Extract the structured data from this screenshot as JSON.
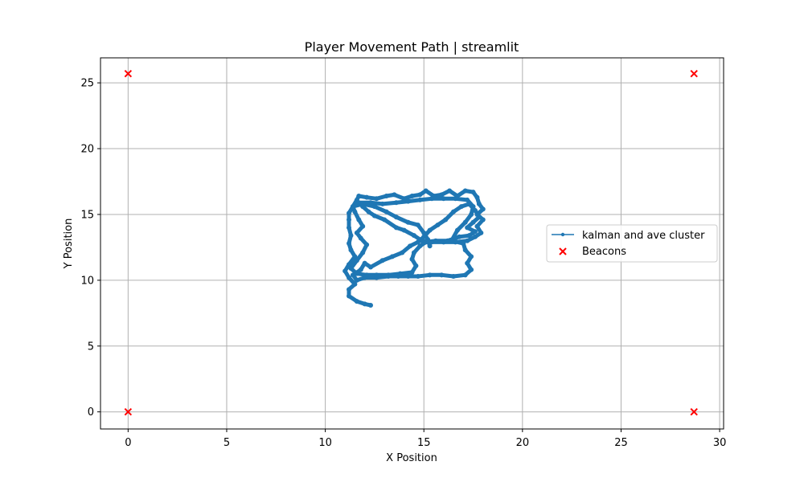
{
  "chart_data": {
    "type": "line",
    "title": "Player Movement Path | streamlit",
    "xlabel": "X Position",
    "ylabel": "Y Position",
    "xlim": [
      -1.4,
      30.2
    ],
    "ylim": [
      -1.3,
      26.9
    ],
    "xticks": [
      0,
      5,
      10,
      15,
      20,
      25,
      30
    ],
    "yticks": [
      0,
      5,
      10,
      15,
      20,
      25
    ],
    "grid": true,
    "legend": "center-right",
    "series": [
      {
        "name": "kalman and ave cluster",
        "color": "#1f77b4",
        "marker": "point",
        "points": [
          [
            12.3,
            8.1
          ],
          [
            12.0,
            8.2
          ],
          [
            11.6,
            8.4
          ],
          [
            11.2,
            8.8
          ],
          [
            11.2,
            9.3
          ],
          [
            11.5,
            9.7
          ],
          [
            11.2,
            10.2
          ],
          [
            11.0,
            10.7
          ],
          [
            11.2,
            11.2
          ],
          [
            11.5,
            11.8
          ],
          [
            11.3,
            12.3
          ],
          [
            11.2,
            12.8
          ],
          [
            11.3,
            13.4
          ],
          [
            11.2,
            14.0
          ],
          [
            11.2,
            14.6
          ],
          [
            11.2,
            15.1
          ],
          [
            11.4,
            15.6
          ],
          [
            11.6,
            16.1
          ],
          [
            11.7,
            16.4
          ],
          [
            12.1,
            16.3
          ],
          [
            12.6,
            16.2
          ],
          [
            13.1,
            16.4
          ],
          [
            13.5,
            16.5
          ],
          [
            14.0,
            16.2
          ],
          [
            14.4,
            16.4
          ],
          [
            14.8,
            16.5
          ],
          [
            15.1,
            16.8
          ],
          [
            15.5,
            16.4
          ],
          [
            15.9,
            16.5
          ],
          [
            16.3,
            16.8
          ],
          [
            16.7,
            16.4
          ],
          [
            17.1,
            16.8
          ],
          [
            17.5,
            16.7
          ],
          [
            17.7,
            16.3
          ],
          [
            17.8,
            15.8
          ],
          [
            18.0,
            15.4
          ],
          [
            17.7,
            15.0
          ],
          [
            18.0,
            14.6
          ],
          [
            17.7,
            14.1
          ],
          [
            17.9,
            13.6
          ],
          [
            17.6,
            13.3
          ],
          [
            17.2,
            13.0
          ],
          [
            16.6,
            12.9
          ],
          [
            16.0,
            12.9
          ],
          [
            15.4,
            12.9
          ],
          [
            14.9,
            13.0
          ],
          [
            14.5,
            13.4
          ],
          [
            14.0,
            13.8
          ],
          [
            13.6,
            14.0
          ],
          [
            13.0,
            14.6
          ],
          [
            12.5,
            14.9
          ],
          [
            12.2,
            15.2
          ],
          [
            11.9,
            15.6
          ],
          [
            11.7,
            15.9
          ],
          [
            12.3,
            15.9
          ],
          [
            12.9,
            15.8
          ],
          [
            13.6,
            15.9
          ],
          [
            14.2,
            16.0
          ],
          [
            14.8,
            16.1
          ],
          [
            15.4,
            16.2
          ],
          [
            16.0,
            16.2
          ],
          [
            16.6,
            16.2
          ],
          [
            17.2,
            16.1
          ],
          [
            17.5,
            15.6
          ],
          [
            17.4,
            15.0
          ],
          [
            17.1,
            14.4
          ],
          [
            16.7,
            13.8
          ],
          [
            16.4,
            13.0
          ],
          [
            17.0,
            12.8
          ],
          [
            17.1,
            12.3
          ],
          [
            17.4,
            11.8
          ],
          [
            17.2,
            11.3
          ],
          [
            17.4,
            10.8
          ],
          [
            17.1,
            10.4
          ],
          [
            16.5,
            10.3
          ],
          [
            15.9,
            10.4
          ],
          [
            15.3,
            10.4
          ],
          [
            14.7,
            10.3
          ],
          [
            14.2,
            10.3
          ],
          [
            13.7,
            10.3
          ],
          [
            13.2,
            10.3
          ],
          [
            12.6,
            10.2
          ],
          [
            12.0,
            10.2
          ],
          [
            11.6,
            10.0
          ],
          [
            11.4,
            10.4
          ],
          [
            11.8,
            10.8
          ],
          [
            12.0,
            11.3
          ],
          [
            12.3,
            11.0
          ],
          [
            12.9,
            11.5
          ],
          [
            13.4,
            11.8
          ],
          [
            13.9,
            12.1
          ],
          [
            14.3,
            12.6
          ],
          [
            14.7,
            12.9
          ],
          [
            15.0,
            13.3
          ],
          [
            15.3,
            13.8
          ],
          [
            15.7,
            14.2
          ],
          [
            16.1,
            14.6
          ],
          [
            16.5,
            15.2
          ],
          [
            16.9,
            15.6
          ],
          [
            17.3,
            15.8
          ],
          [
            17.6,
            15.3
          ],
          [
            17.8,
            14.8
          ],
          [
            17.5,
            14.4
          ],
          [
            17.2,
            14.0
          ],
          [
            17.6,
            13.7
          ],
          [
            17.3,
            13.4
          ],
          [
            16.8,
            13.3
          ],
          [
            16.2,
            13.0
          ],
          [
            15.6,
            13.0
          ],
          [
            15.1,
            12.9
          ],
          [
            14.8,
            12.6
          ],
          [
            14.5,
            12.1
          ],
          [
            14.4,
            11.6
          ],
          [
            14.6,
            11.1
          ],
          [
            14.4,
            10.6
          ],
          [
            13.8,
            10.5
          ],
          [
            13.2,
            10.4
          ],
          [
            12.6,
            10.4
          ],
          [
            12.1,
            10.4
          ],
          [
            11.6,
            10.5
          ],
          [
            11.3,
            10.9
          ],
          [
            11.6,
            11.5
          ],
          [
            11.9,
            12.1
          ],
          [
            12.1,
            12.7
          ],
          [
            11.8,
            13.2
          ],
          [
            11.6,
            13.6
          ],
          [
            11.9,
            14.1
          ],
          [
            11.7,
            14.6
          ],
          [
            11.5,
            15.2
          ],
          [
            11.4,
            15.6
          ],
          [
            11.9,
            15.8
          ],
          [
            12.5,
            15.6
          ],
          [
            13.1,
            15.2
          ],
          [
            13.6,
            14.8
          ],
          [
            14.2,
            14.4
          ],
          [
            14.7,
            14.2
          ],
          [
            15.0,
            13.6
          ],
          [
            15.2,
            13.1
          ],
          [
            15.3,
            12.6
          ]
        ]
      },
      {
        "name": "Beacons",
        "color": "#ff0000",
        "marker": "x",
        "points": [
          [
            0,
            25.7
          ],
          [
            28.7,
            25.7
          ],
          [
            0,
            0
          ],
          [
            28.7,
            0
          ]
        ]
      }
    ]
  }
}
